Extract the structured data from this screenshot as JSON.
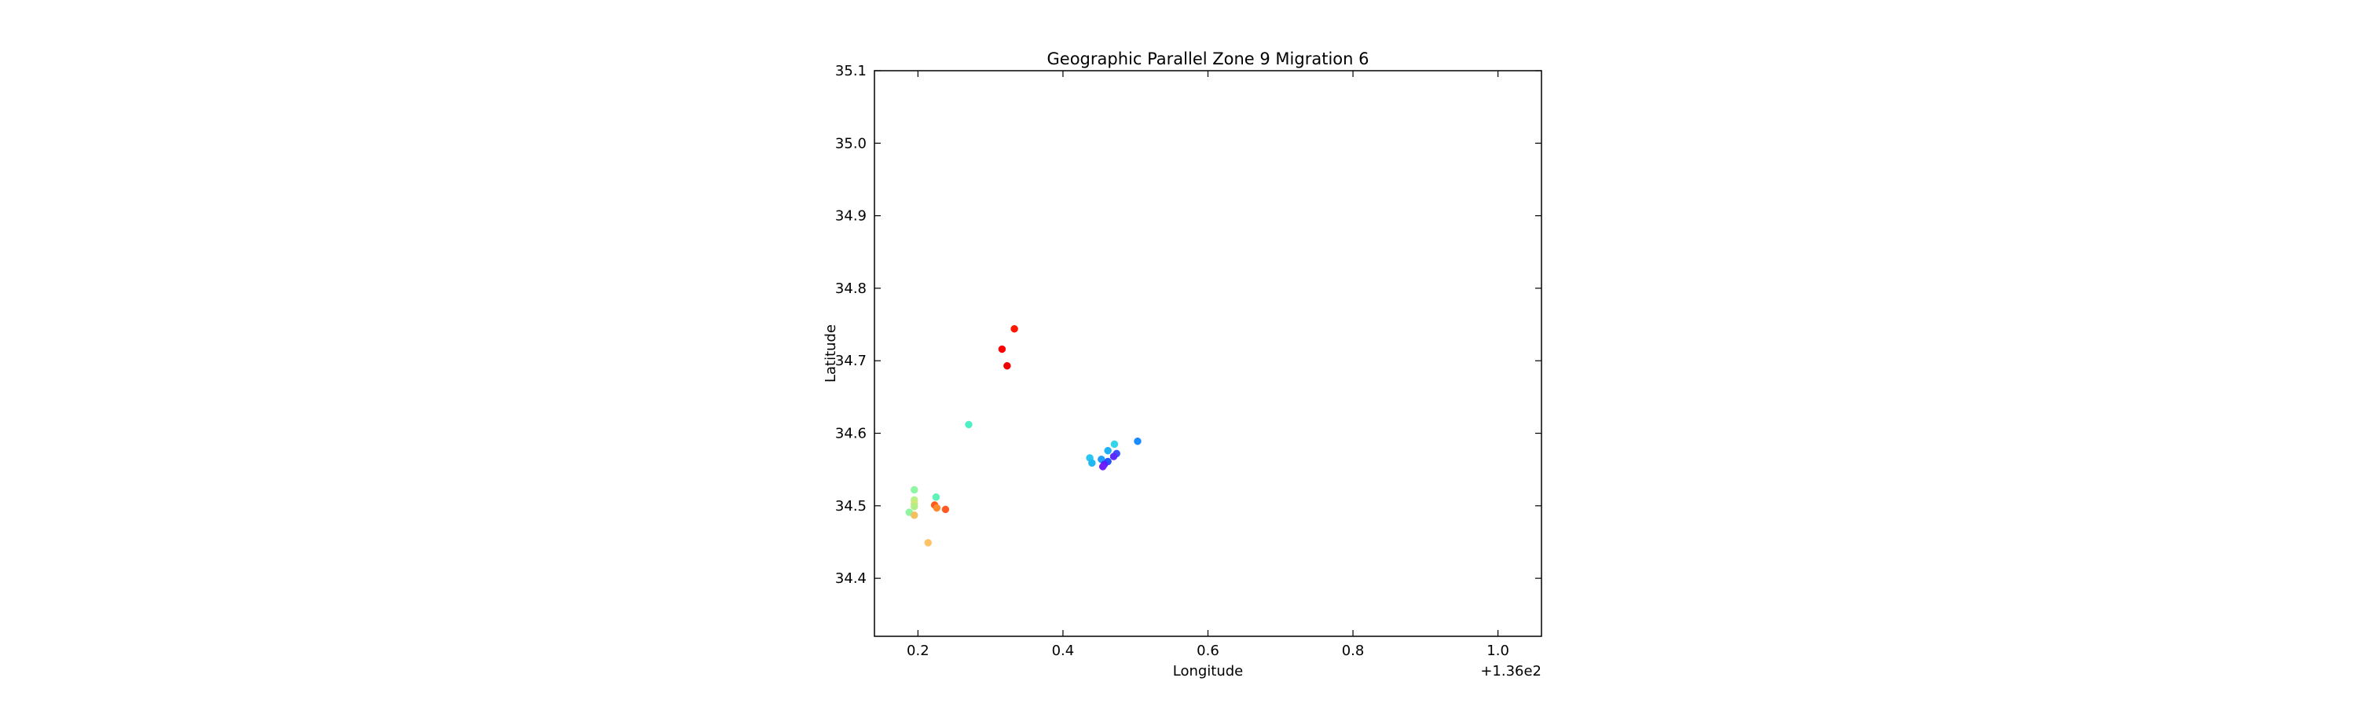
{
  "chart_data": {
    "type": "scatter",
    "title": "Geographic Parallel Zone 9 Migration 6",
    "xlabel": "Longitude",
    "ylabel": "Latitude",
    "x_offset_label": "+1.36e2",
    "xlim": [
      136.14,
      137.06
    ],
    "ylim": [
      34.32,
      35.1
    ],
    "x_ticks": [
      136.2,
      136.4,
      136.6,
      136.8,
      137.0
    ],
    "x_tick_labels": [
      "0.2",
      "0.4",
      "0.6",
      "0.8",
      "1.0"
    ],
    "y_ticks": [
      34.4,
      34.5,
      34.6,
      34.7,
      34.8,
      34.9,
      35.0,
      35.1
    ],
    "y_tick_labels": [
      "34.4",
      "34.5",
      "34.6",
      "34.7",
      "34.8",
      "34.9",
      "35.0",
      "35.1"
    ],
    "grid": false,
    "points": [
      {
        "x": 136.333,
        "y": 34.744,
        "color": "#ff1500"
      },
      {
        "x": 136.316,
        "y": 34.716,
        "color": "#ff0000"
      },
      {
        "x": 136.323,
        "y": 34.693,
        "color": "#ee0000"
      },
      {
        "x": 136.27,
        "y": 34.612,
        "color": "#4df0c6"
      },
      {
        "x": 136.503,
        "y": 34.589,
        "color": "#1a8cff"
      },
      {
        "x": 136.471,
        "y": 34.585,
        "color": "#33d5ea"
      },
      {
        "x": 136.462,
        "y": 34.576,
        "color": "#1fb2f5"
      },
      {
        "x": 136.474,
        "y": 34.572,
        "color": "#3d50ff"
      },
      {
        "x": 136.47,
        "y": 34.568,
        "color": "#5b2bff"
      },
      {
        "x": 136.437,
        "y": 34.566,
        "color": "#28c6f0"
      },
      {
        "x": 136.453,
        "y": 34.564,
        "color": "#1e9cff"
      },
      {
        "x": 136.462,
        "y": 34.561,
        "color": "#2456ff"
      },
      {
        "x": 136.44,
        "y": 34.559,
        "color": "#20b8f2"
      },
      {
        "x": 136.457,
        "y": 34.557,
        "color": "#5a1fff"
      },
      {
        "x": 136.455,
        "y": 34.554,
        "color": "#7020ff"
      },
      {
        "x": 136.195,
        "y": 34.522,
        "color": "#8ff7a3"
      },
      {
        "x": 136.225,
        "y": 34.512,
        "color": "#5cf2b8"
      },
      {
        "x": 136.195,
        "y": 34.508,
        "color": "#b8f28a"
      },
      {
        "x": 136.195,
        "y": 34.503,
        "color": "#d4e67a"
      },
      {
        "x": 136.195,
        "y": 34.499,
        "color": "#b4ee86"
      },
      {
        "x": 136.223,
        "y": 34.501,
        "color": "#ff5a1a"
      },
      {
        "x": 136.226,
        "y": 34.497,
        "color": "#ff8a2e"
      },
      {
        "x": 136.238,
        "y": 34.495,
        "color": "#ff5a24"
      },
      {
        "x": 136.188,
        "y": 34.491,
        "color": "#8ef5a0"
      },
      {
        "x": 136.195,
        "y": 34.487,
        "color": "#f2c060"
      },
      {
        "x": 136.214,
        "y": 34.449,
        "color": "#ffc266"
      }
    ]
  }
}
